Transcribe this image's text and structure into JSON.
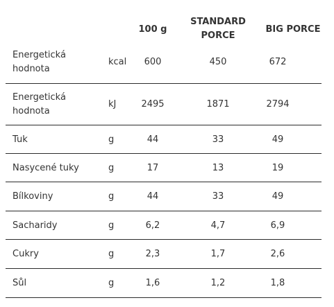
{
  "header": {
    "col_100g": "100 g",
    "col_standard": "STANDARD PORCE",
    "col_big": "BIG PORCE"
  },
  "rows": [
    {
      "name": "Energetická hodnota",
      "unit": "kcal",
      "per100g": "600",
      "standard": "450",
      "big": "672"
    },
    {
      "name": "Energetická hodnota",
      "unit": "kJ",
      "per100g": "2495",
      "standard": "1871",
      "big": "2794"
    },
    {
      "name": "Tuk",
      "unit": "g",
      "per100g": "44",
      "standard": "33",
      "big": "49"
    },
    {
      "name": "Nasycené tuky",
      "unit": "g",
      "per100g": "17",
      "standard": "13",
      "big": "19"
    },
    {
      "name": "Bílkoviny",
      "unit": "g",
      "per100g": "44",
      "standard": "33",
      "big": "49"
    },
    {
      "name": "Sacharidy",
      "unit": "g",
      "per100g": "6,2",
      "standard": "4,7",
      "big": "6,9"
    },
    {
      "name": "Cukry",
      "unit": "g",
      "per100g": "2,3",
      "standard": "1,7",
      "big": "2,6"
    },
    {
      "name": "Sůl",
      "unit": "g",
      "per100g": "1,6",
      "standard": "1,2",
      "big": "1,8"
    }
  ]
}
